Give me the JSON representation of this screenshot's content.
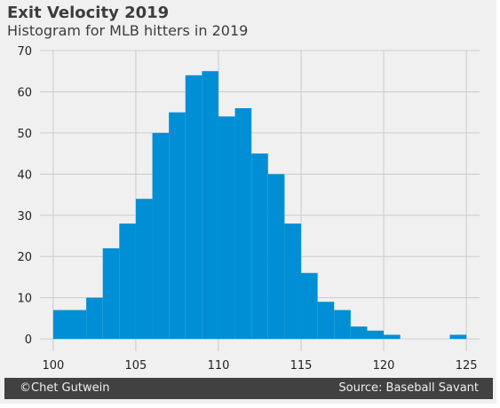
{
  "title": "Exit Velocity 2019",
  "subtitle": "Histogram for MLB hitters in 2019",
  "footer": {
    "left": "©Chet Gutwein",
    "right": "Source: Baseball Savant"
  },
  "chart_data": {
    "type": "bar",
    "style": "histogram",
    "title": "Exit Velocity 2019",
    "subtitle": "Histogram for MLB hitters in 2019",
    "xlabel": "",
    "ylabel": "",
    "bin_edges": [
      100.0,
      101.0,
      102.0,
      103.0,
      104.0,
      105.0,
      106.0,
      107.0,
      108.0,
      109.0,
      110.0,
      111.0,
      112.0,
      113.0,
      114.0,
      115.0,
      116.0,
      117.0,
      118.0,
      119.0,
      120.0,
      121.0,
      122.0,
      123.0,
      124.0,
      125.0
    ],
    "values": [
      7,
      7,
      10,
      22,
      28,
      34,
      50,
      55,
      64,
      65,
      54,
      56,
      45,
      40,
      28,
      16,
      9,
      7,
      3,
      2,
      1,
      0,
      0,
      0,
      1
    ],
    "xlim": [
      99.2,
      125.8
    ],
    "ylim": [
      -3,
      70
    ],
    "x_ticks": [
      100,
      105,
      110,
      115,
      120,
      125
    ],
    "y_ticks": [
      0,
      10,
      20,
      30,
      40,
      50,
      60,
      70
    ],
    "bar_color": "#008fd5",
    "grid": true,
    "legend": "none"
  }
}
